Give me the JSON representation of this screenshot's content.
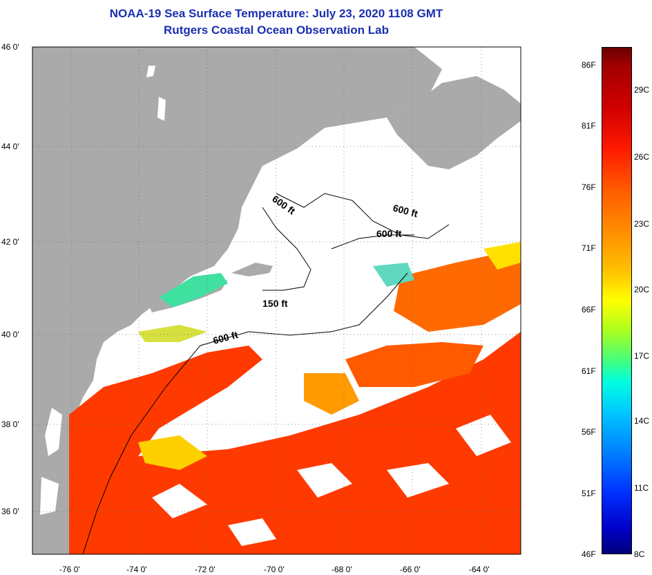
{
  "title": "NOAA-19 Sea Surface Temperature:  July 23, 2020 1108 GMT",
  "subtitle": "Rutgers Coastal Ocean Observation Lab",
  "lat_labels": [
    "46 0'",
    "44 0'",
    "42 0'",
    "40 0'",
    "38 0'",
    "36 0'"
  ],
  "lon_labels": [
    "-76 0'",
    "-74 0'",
    "-72 0'",
    "-70 0'",
    "-68 0'",
    "-66 0'",
    "-64 0'"
  ],
  "colorbar": {
    "fahrenheit": [
      "86F",
      "81F",
      "76F",
      "71F",
      "66F",
      "61F",
      "56F",
      "51F",
      "46F"
    ],
    "celsius": [
      "29C",
      "26C",
      "23C",
      "20C",
      "17C",
      "14C",
      "11C",
      "8C"
    ]
  },
  "isobaths": [
    "600 ft",
    "600 ft",
    "600 ft",
    "150 ft",
    "600 ft"
  ],
  "colors": {
    "land": "#aaaaaa",
    "title": "#1a2fb0",
    "warm": "#ff3a00"
  }
}
